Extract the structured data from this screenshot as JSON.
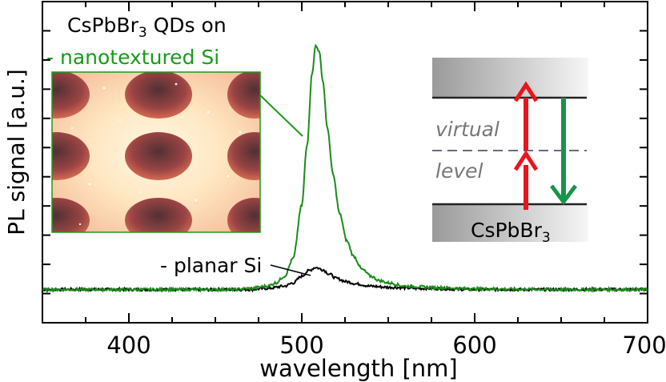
{
  "chart_data": {
    "type": "line",
    "title": "",
    "xlabel": "wavelength [nm]",
    "ylabel": "PL signal [a.u.]",
    "xlim": [
      350,
      700
    ],
    "ylim": [
      -0.15,
      1.3
    ],
    "x_ticks": [
      400,
      500,
      600,
      700
    ],
    "x_tick_labels": [
      "400",
      "500",
      "600",
      "700"
    ],
    "y_tick_labels_shown": false,
    "grid": false,
    "series": [
      {
        "name": "nanotextured Si",
        "color": "#1a8c1a",
        "x": [
          350,
          380,
          420,
          460,
          470,
          480,
          485,
          490,
          495,
          500,
          503,
          506,
          508,
          510,
          512,
          515,
          518,
          522,
          526,
          530,
          535,
          540,
          545,
          550,
          560,
          580,
          600,
          650,
          700
        ],
        "y": [
          0.0,
          0.0,
          0.0,
          0.0,
          0.005,
          0.015,
          0.03,
          0.06,
          0.14,
          0.38,
          0.65,
          0.98,
          1.1,
          1.08,
          0.95,
          0.72,
          0.52,
          0.34,
          0.22,
          0.15,
          0.09,
          0.06,
          0.04,
          0.03,
          0.015,
          0.008,
          0.003,
          0.0,
          0.0
        ]
      },
      {
        "name": "planar Si",
        "color": "#000000",
        "x": [
          350,
          420,
          470,
          480,
          490,
          495,
          500,
          504,
          508,
          512,
          516,
          520,
          526,
          532,
          540,
          550,
          570,
          600,
          700
        ],
        "y": [
          0.0,
          0.0,
          0.0,
          0.005,
          0.015,
          0.03,
          0.06,
          0.085,
          0.1,
          0.09,
          0.07,
          0.05,
          0.035,
          0.025,
          0.015,
          0.01,
          0.005,
          0.0,
          0.0
        ]
      }
    ]
  },
  "annotations": {
    "title_line1": "CsPbBr",
    "title_sub": "3",
    "title_line1_rest": " QDs on",
    "title_line2": "- nanotextured Si",
    "planar_label": "- planar Si",
    "title_line2_color": "#1a9a1a"
  },
  "energy_diagram": {
    "virtual_label_1": "virtual",
    "virtual_label_2": "level",
    "material_prefix": "CsPbBr",
    "material_sub": "3",
    "excitation_color": "#e8151b",
    "emission_color": "#16944a",
    "virtual_label_color": "#777777"
  },
  "inset_image": {
    "description_icon": "nanotextured-surface-image"
  }
}
